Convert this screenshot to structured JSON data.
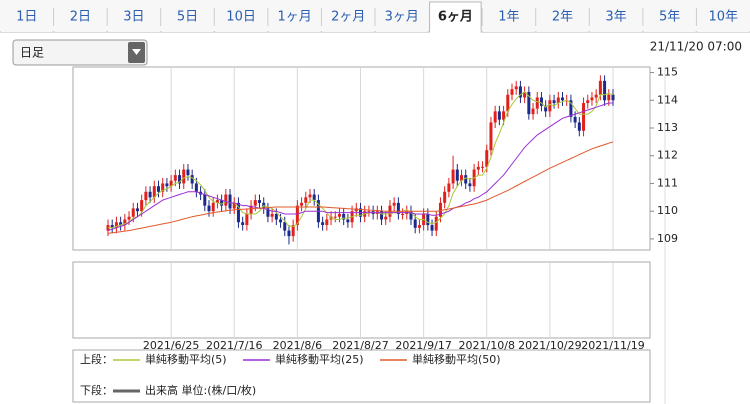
{
  "tabs": [
    "1日",
    "2日",
    "3日",
    "5日",
    "10日",
    "1ヶ月",
    "2ヶ月",
    "3ヶ月",
    "6ヶ月",
    "1年",
    "2年",
    "3年",
    "5年",
    "10年"
  ],
  "selected_tab": 8,
  "dropdown": "日足",
  "timestamp": "21/11/20 07:00",
  "chart_data": {
    "type": "candlestick",
    "categories": [
      null,
      null,
      null,
      null,
      null,
      null,
      null,
      null,
      null,
      null,
      null,
      null,
      null,
      null,
      null,
      "2021/6/25",
      null,
      null,
      null,
      null,
      null,
      null,
      null,
      null,
      null,
      null,
      null,
      null,
      null,
      null,
      "2021/7/16",
      null,
      null,
      null,
      null,
      null,
      null,
      null,
      null,
      null,
      null,
      null,
      null,
      null,
      null,
      "2021/8/6",
      null,
      null,
      null,
      null,
      null,
      null,
      null,
      null,
      null,
      null,
      null,
      null,
      null,
      null,
      "2021/8/27",
      null,
      null,
      null,
      null,
      null,
      null,
      null,
      null,
      null,
      null,
      null,
      null,
      null,
      null,
      "2021/9/17",
      null,
      null,
      null,
      null,
      null,
      null,
      null,
      null,
      null,
      null,
      null,
      null,
      null,
      null,
      "2021/10/8",
      null,
      null,
      null,
      null,
      null,
      null,
      null,
      null,
      null,
      null,
      null,
      null,
      null,
      null,
      "2021/10/29",
      null,
      null,
      null,
      null,
      null,
      null,
      null,
      null,
      null,
      null,
      null,
      null,
      null,
      null,
      "2021/11/19"
    ],
    "open": [
      109.3,
      109.5,
      109.4,
      109.6,
      109.5,
      109.7,
      109.8,
      110.1,
      110.0,
      110.4,
      110.7,
      110.5,
      110.9,
      110.7,
      111.0,
      110.9,
      111.1,
      111.3,
      111.0,
      111.5,
      111.3,
      111.0,
      110.7,
      110.6,
      110.2,
      110.0,
      110.3,
      110.4,
      110.2,
      110.6,
      110.1,
      110.3,
      109.6,
      109.5,
      109.9,
      110.2,
      110.4,
      110.3,
      110.1,
      109.8,
      109.9,
      109.7,
      109.6,
      109.3,
      109.1,
      109.5,
      110.2,
      110.3,
      110.5,
      110.6,
      110.4,
      109.6,
      109.5,
      109.7,
      109.8,
      109.8,
      109.9,
      109.7,
      109.6,
      110.0,
      110.1,
      109.8,
      110.0,
      110.0,
      109.9,
      110.0,
      109.7,
      109.8,
      110.2,
      110.3,
      109.9,
      109.9,
      110.0,
      109.7,
      109.4,
      109.5,
      109.9,
      109.5,
      109.3,
      109.8,
      110.3,
      110.7,
      111.0,
      111.5,
      111.1,
      111.3,
      111.0,
      110.9,
      111.5,
      111.6,
      111.6,
      112.2,
      113.2,
      113.6,
      113.3,
      113.6,
      114.2,
      114.4,
      114.5,
      114.1,
      114.3,
      113.5,
      113.7,
      114.1,
      113.8,
      113.6,
      114.0,
      113.9,
      114.1,
      114.0,
      114.0,
      113.4,
      113.2,
      112.9,
      113.9,
      114.0,
      114.1,
      114.2,
      114.7,
      114.0,
      114.2
    ],
    "high": [
      109.7,
      109.7,
      109.8,
      109.8,
      109.9,
      110.0,
      110.3,
      110.3,
      110.6,
      110.9,
      110.9,
      111.1,
      111.1,
      111.2,
      111.2,
      111.3,
      111.5,
      111.5,
      111.7,
      111.7,
      111.5,
      111.2,
      110.9,
      110.8,
      110.4,
      110.5,
      110.6,
      110.6,
      110.8,
      110.8,
      110.5,
      110.5,
      109.8,
      110.1,
      110.4,
      110.6,
      110.6,
      110.5,
      110.3,
      110.1,
      110.1,
      109.9,
      109.8,
      109.5,
      109.7,
      110.4,
      110.5,
      110.7,
      110.8,
      110.8,
      110.6,
      109.8,
      109.9,
      110.0,
      110.0,
      110.1,
      110.1,
      109.9,
      110.2,
      110.3,
      110.3,
      110.2,
      110.2,
      110.2,
      110.2,
      110.2,
      110.0,
      110.4,
      110.5,
      110.5,
      110.1,
      110.2,
      110.2,
      109.9,
      109.7,
      110.1,
      110.1,
      109.7,
      110.0,
      110.5,
      110.9,
      111.2,
      112.0,
      111.7,
      111.5,
      111.5,
      111.2,
      111.7,
      111.8,
      111.8,
      112.4,
      113.4,
      113.8,
      113.8,
      113.8,
      114.4,
      114.6,
      114.7,
      114.7,
      114.5,
      114.5,
      113.9,
      114.3,
      114.3,
      114.0,
      114.2,
      114.2,
      114.3,
      114.3,
      114.2,
      114.2,
      113.6,
      113.4,
      114.1,
      114.2,
      114.3,
      114.4,
      114.9,
      114.9,
      114.4,
      114.4
    ],
    "low": [
      109.1,
      109.2,
      109.2,
      109.3,
      109.3,
      109.5,
      109.6,
      109.8,
      109.8,
      110.2,
      110.3,
      110.3,
      110.5,
      110.5,
      110.7,
      110.7,
      110.9,
      110.8,
      110.8,
      111.1,
      110.8,
      110.5,
      110.4,
      110.0,
      109.8,
      109.8,
      110.1,
      110.0,
      110.0,
      109.9,
      109.9,
      109.4,
      109.3,
      109.3,
      109.7,
      110.0,
      110.1,
      109.9,
      109.6,
      109.6,
      109.5,
      109.4,
      109.1,
      108.8,
      108.9,
      109.3,
      110.0,
      110.1,
      110.3,
      110.2,
      109.4,
      109.3,
      109.3,
      109.5,
      109.6,
      109.6,
      109.5,
      109.4,
      109.4,
      109.8,
      109.6,
      109.6,
      109.8,
      109.7,
      109.7,
      109.5,
      109.5,
      109.6,
      110.0,
      109.7,
      109.7,
      109.7,
      109.5,
      109.2,
      109.2,
      109.3,
      109.3,
      109.1,
      109.1,
      109.6,
      110.1,
      110.5,
      110.8,
      110.9,
      110.9,
      110.8,
      110.7,
      110.7,
      111.3,
      111.4,
      111.4,
      112.0,
      113.0,
      113.1,
      113.1,
      113.4,
      114.0,
      114.2,
      113.9,
      113.9,
      113.3,
      113.3,
      113.5,
      113.6,
      113.4,
      113.4,
      113.7,
      113.7,
      113.8,
      113.8,
      113.2,
      113.0,
      112.7,
      112.7,
      113.7,
      113.8,
      113.9,
      114.0,
      113.8,
      113.8,
      113.8
    ],
    "close": [
      109.5,
      109.4,
      109.6,
      109.5,
      109.7,
      109.8,
      110.1,
      110.0,
      110.4,
      110.7,
      110.5,
      110.9,
      110.7,
      111.0,
      110.9,
      111.1,
      111.3,
      111.0,
      111.5,
      111.3,
      111.0,
      110.7,
      110.6,
      110.2,
      110.0,
      110.3,
      110.4,
      110.2,
      110.6,
      110.1,
      110.3,
      109.6,
      109.5,
      109.9,
      110.2,
      110.4,
      110.3,
      110.1,
      109.8,
      109.9,
      109.7,
      109.6,
      109.3,
      109.1,
      109.5,
      110.2,
      110.3,
      110.5,
      110.6,
      110.4,
      109.6,
      109.5,
      109.7,
      109.8,
      109.8,
      109.9,
      109.7,
      109.6,
      110.0,
      110.1,
      109.8,
      110.0,
      110.0,
      109.9,
      110.0,
      109.7,
      109.8,
      110.2,
      110.3,
      109.9,
      109.9,
      110.0,
      109.7,
      109.4,
      109.5,
      109.9,
      109.5,
      109.3,
      109.8,
      110.3,
      110.7,
      111.0,
      111.5,
      111.1,
      111.3,
      111.0,
      110.9,
      111.5,
      111.6,
      111.6,
      112.2,
      113.2,
      113.6,
      113.3,
      113.6,
      114.2,
      114.4,
      114.5,
      114.1,
      114.3,
      113.5,
      113.7,
      114.1,
      113.8,
      113.6,
      114.0,
      113.9,
      114.1,
      114.0,
      114.0,
      113.4,
      113.2,
      112.9,
      113.9,
      114.0,
      114.1,
      114.2,
      114.7,
      114.0,
      114.2,
      114.0
    ],
    "up_color": "#e0201b",
    "down_color": "#1c2a8c",
    "lines": [
      {
        "name": "単純移動平均(5)",
        "color": "#a8c83a",
        "values": [
          109.4,
          109.4,
          109.45,
          109.5,
          109.55,
          109.6,
          109.75,
          109.8,
          109.95,
          110.2,
          110.35,
          110.5,
          110.65,
          110.75,
          110.8,
          110.9,
          111.0,
          111.05,
          111.2,
          111.25,
          111.2,
          111.1,
          110.95,
          110.75,
          110.5,
          110.35,
          110.3,
          110.25,
          110.35,
          110.3,
          110.3,
          110.15,
          109.95,
          109.9,
          109.9,
          109.9,
          110.0,
          110.2,
          110.15,
          110.1,
          109.95,
          109.8,
          109.65,
          109.45,
          109.45,
          109.55,
          109.8,
          110.1,
          110.4,
          110.4,
          110.25,
          110.1,
          109.95,
          109.75,
          109.7,
          109.7,
          109.75,
          109.75,
          109.8,
          109.85,
          109.85,
          109.9,
          109.95,
          109.95,
          109.95,
          109.9,
          109.9,
          109.9,
          109.95,
          109.95,
          110.0,
          110.05,
          109.95,
          109.8,
          109.7,
          109.7,
          109.6,
          109.55,
          109.6,
          109.75,
          109.9,
          110.2,
          110.65,
          110.9,
          111.1,
          111.2,
          111.15,
          111.2,
          111.3,
          111.3,
          111.55,
          111.95,
          112.45,
          112.8,
          113.2,
          113.6,
          113.85,
          114.05,
          114.2,
          114.3,
          114.15,
          114.0,
          113.95,
          113.9,
          113.75,
          113.85,
          113.8,
          113.9,
          113.95,
          114.0,
          113.9,
          113.7,
          113.5,
          113.5,
          113.5,
          113.6,
          113.8,
          114.2,
          114.2,
          114.25,
          114.2
        ]
      },
      {
        "name": "単純移動平均(25)",
        "color": "#9b2fd6",
        "values": [
          109.3,
          109.35,
          109.4,
          109.45,
          109.5,
          109.6,
          109.7,
          109.8,
          109.9,
          110.0,
          110.1,
          110.2,
          110.3,
          110.4,
          110.45,
          110.5,
          110.55,
          110.6,
          110.65,
          110.7,
          110.7,
          110.7,
          110.65,
          110.6,
          110.55,
          110.5,
          110.45,
          110.4,
          110.35,
          110.3,
          110.3,
          110.25,
          110.2,
          110.2,
          110.15,
          110.15,
          110.1,
          110.1,
          110.05,
          110.0,
          110.0,
          109.95,
          109.9,
          109.9,
          109.9,
          109.9,
          109.95,
          110.0,
          110.0,
          110.0,
          110.0,
          110.0,
          109.95,
          109.95,
          109.95,
          109.95,
          109.95,
          109.95,
          109.95,
          109.95,
          109.95,
          109.95,
          109.95,
          109.95,
          109.95,
          109.95,
          109.95,
          109.95,
          109.95,
          109.95,
          109.95,
          109.95,
          109.95,
          109.9,
          109.9,
          109.9,
          109.9,
          109.85,
          109.85,
          109.9,
          109.95,
          110.0,
          110.1,
          110.15,
          110.2,
          110.3,
          110.35,
          110.45,
          110.5,
          110.6,
          110.7,
          110.85,
          111.0,
          111.15,
          111.3,
          111.5,
          111.7,
          111.9,
          112.1,
          112.3,
          112.45,
          112.6,
          112.75,
          112.85,
          112.95,
          113.05,
          113.15,
          113.25,
          113.35,
          113.4,
          113.45,
          113.5,
          113.55,
          113.6,
          113.65,
          113.7,
          113.75,
          113.8,
          113.85,
          113.9,
          113.9
        ]
      },
      {
        "name": "単純移動平均(50)",
        "color": "#e2582a",
        "values": [
          109.2,
          109.22,
          109.24,
          109.26,
          109.28,
          109.3,
          109.33,
          109.36,
          109.39,
          109.42,
          109.45,
          109.48,
          109.51,
          109.54,
          109.57,
          109.6,
          109.64,
          109.68,
          109.72,
          109.76,
          109.8,
          109.83,
          109.86,
          109.89,
          109.92,
          109.95,
          109.97,
          109.99,
          110.01,
          110.03,
          110.05,
          110.06,
          110.07,
          110.08,
          110.09,
          110.1,
          110.11,
          110.12,
          110.13,
          110.14,
          110.15,
          110.15,
          110.15,
          110.15,
          110.15,
          110.15,
          110.15,
          110.15,
          110.15,
          110.15,
          110.15,
          110.15,
          110.14,
          110.13,
          110.12,
          110.11,
          110.1,
          110.09,
          110.08,
          110.07,
          110.06,
          110.05,
          110.04,
          110.03,
          110.02,
          110.01,
          110.0,
          110.0,
          110.0,
          110.0,
          110.0,
          110.0,
          110.0,
          110.0,
          110.0,
          110.0,
          110.0,
          110.0,
          110.0,
          110.02,
          110.05,
          110.08,
          110.11,
          110.14,
          110.17,
          110.2,
          110.23,
          110.26,
          110.3,
          110.35,
          110.4,
          110.47,
          110.54,
          110.61,
          110.68,
          110.75,
          110.83,
          110.91,
          110.99,
          111.07,
          111.15,
          111.23,
          111.31,
          111.39,
          111.47,
          111.55,
          111.62,
          111.69,
          111.76,
          111.83,
          111.9,
          111.97,
          112.04,
          112.11,
          112.18,
          112.25,
          112.3,
          112.35,
          112.4,
          112.45,
          112.5
        ]
      }
    ],
    "ylim": [
      108.6,
      115.2
    ],
    "yticks": [
      109,
      110,
      111,
      112,
      113,
      114,
      115
    ],
    "grid": true,
    "upper_label": "上段：",
    "lower_label": "下段：",
    "volume_name": "出来高 単位:(株/口/枚)",
    "volume_color": "#666666"
  }
}
